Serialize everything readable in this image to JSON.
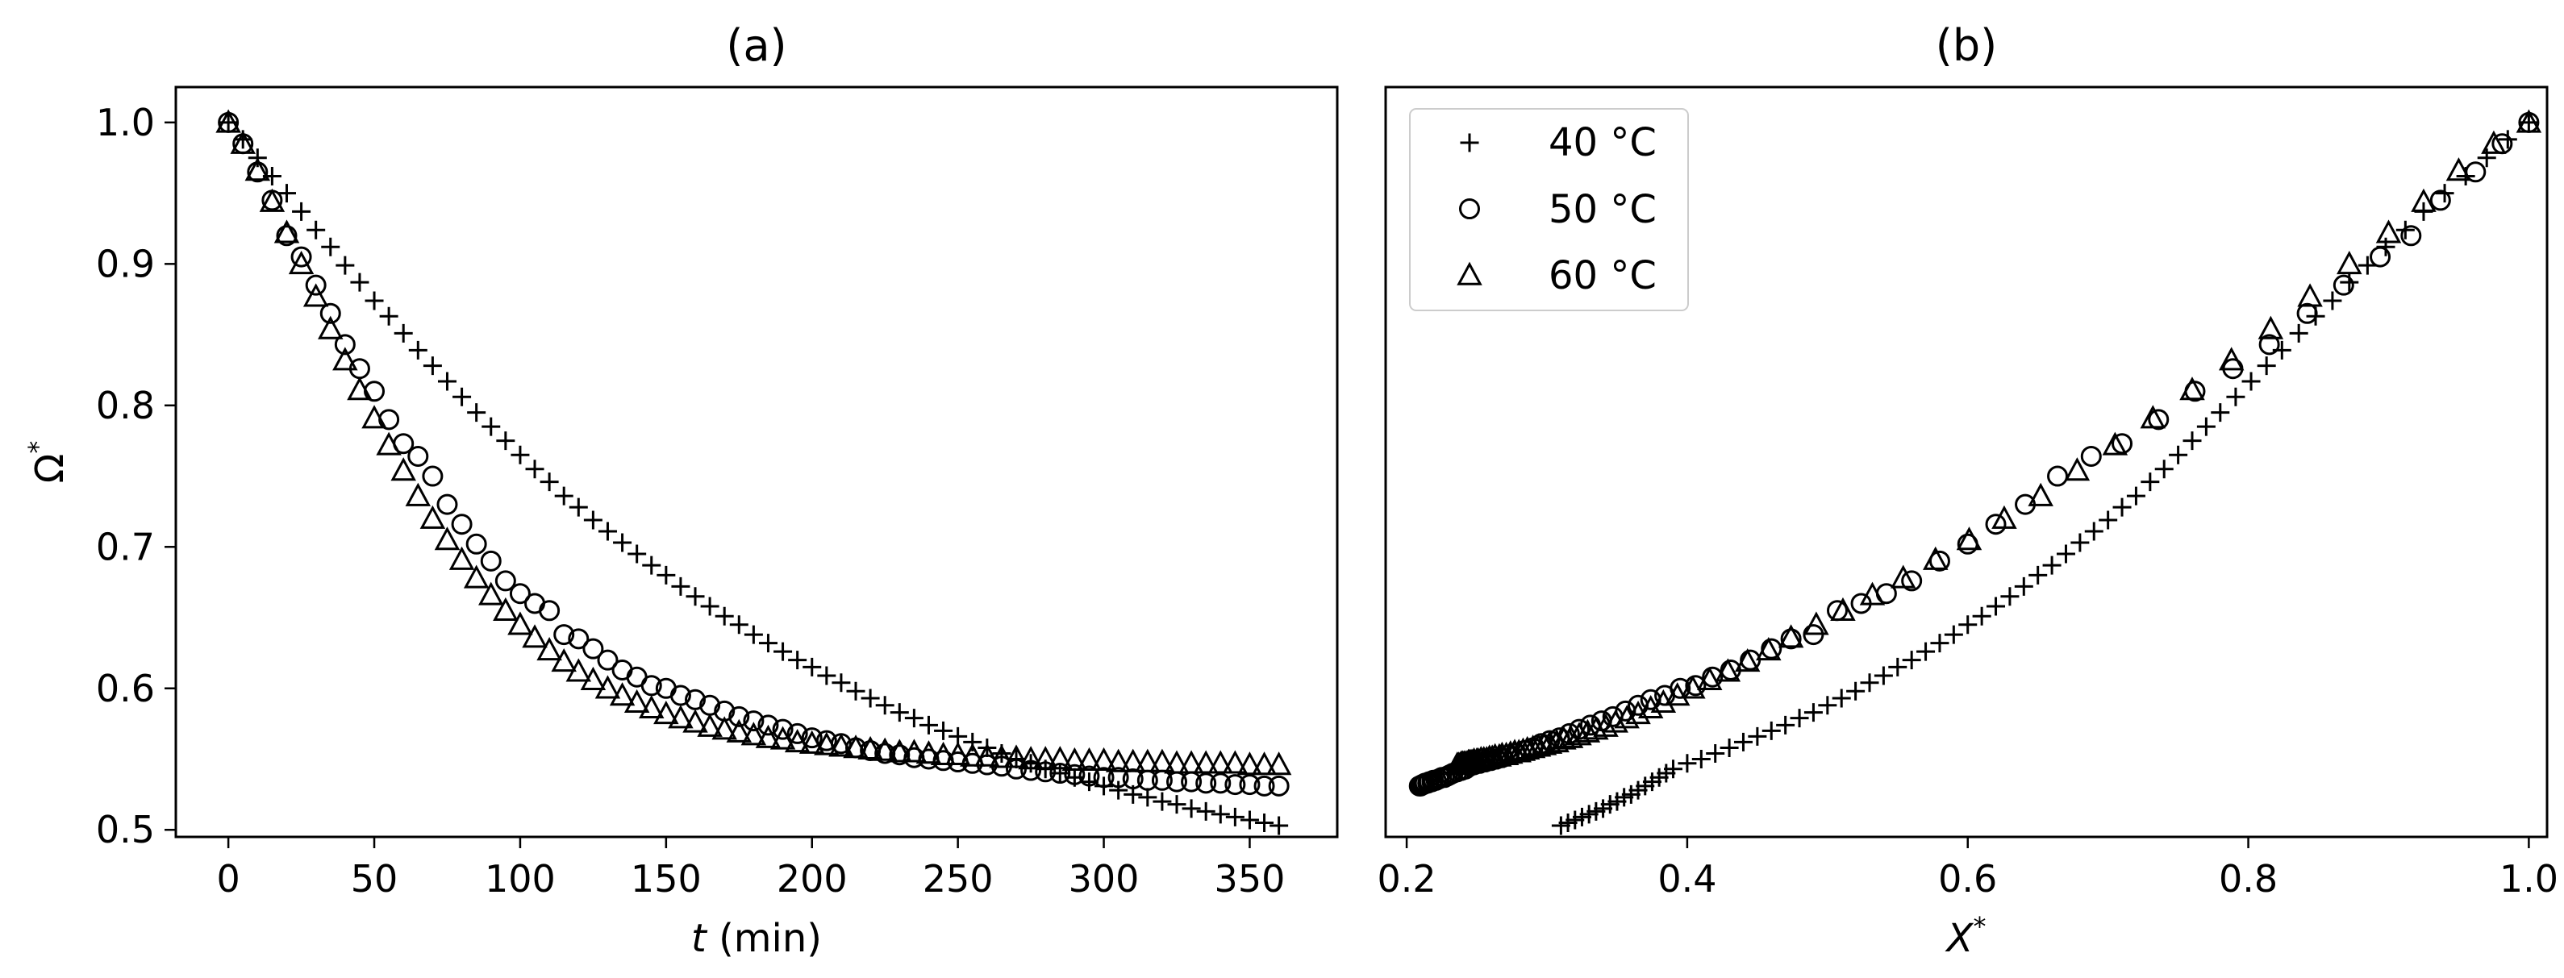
{
  "colors": {
    "marker": "#000000",
    "frame": "#000000",
    "background": "#ffffff"
  },
  "chart_data": [
    {
      "type": "scatter",
      "title": "(a)",
      "xlabel": "t",
      "xlabel_unit": "(min)",
      "ylabel": "Ω",
      "ylabel_sup": "*",
      "xlim": [
        -18,
        380
      ],
      "ylim": [
        0.495,
        1.025
      ],
      "xticks": [
        0,
        50,
        100,
        150,
        200,
        250,
        300,
        350
      ],
      "yticks": [
        0.5,
        0.6,
        0.7,
        0.8,
        0.9,
        1.0
      ],
      "xtick_labels": [
        "0",
        "50",
        "100",
        "150",
        "200",
        "250",
        "300",
        "350"
      ],
      "ytick_labels": [
        "0.5",
        "0.6",
        "0.7",
        "0.8",
        "0.9",
        "1.0"
      ],
      "grid": false,
      "series": [
        {
          "name": "40 °C",
          "marker": "plus",
          "x": [
            0,
            5,
            10,
            15,
            20,
            25,
            30,
            35,
            40,
            45,
            50,
            55,
            60,
            65,
            70,
            75,
            80,
            85,
            90,
            95,
            100,
            105,
            110,
            115,
            120,
            125,
            130,
            135,
            140,
            145,
            150,
            155,
            160,
            165,
            170,
            175,
            180,
            185,
            190,
            195,
            200,
            205,
            210,
            215,
            220,
            225,
            230,
            235,
            240,
            245,
            250,
            255,
            260,
            265,
            270,
            275,
            280,
            285,
            290,
            295,
            300,
            305,
            310,
            315,
            320,
            325,
            330,
            335,
            340,
            345,
            350,
            355,
            360
          ],
          "y": [
            1.0,
            0.988,
            0.975,
            0.962,
            0.95,
            0.937,
            0.924,
            0.912,
            0.899,
            0.887,
            0.874,
            0.863,
            0.851,
            0.839,
            0.828,
            0.817,
            0.806,
            0.795,
            0.785,
            0.775,
            0.765,
            0.755,
            0.746,
            0.736,
            0.728,
            0.719,
            0.711,
            0.703,
            0.695,
            0.687,
            0.68,
            0.672,
            0.665,
            0.658,
            0.651,
            0.645,
            0.638,
            0.632,
            0.626,
            0.62,
            0.615,
            0.609,
            0.604,
            0.598,
            0.593,
            0.588,
            0.583,
            0.579,
            0.574,
            0.57,
            0.566,
            0.562,
            0.558,
            0.554,
            0.55,
            0.547,
            0.543,
            0.54,
            0.537,
            0.534,
            0.531,
            0.528,
            0.525,
            0.523,
            0.52,
            0.518,
            0.515,
            0.513,
            0.511,
            0.509,
            0.507,
            0.505,
            0.503
          ]
        },
        {
          "name": "50 °C",
          "marker": "circle",
          "x": [
            0,
            5,
            10,
            15,
            20,
            25,
            30,
            35,
            40,
            45,
            50,
            55,
            60,
            65,
            70,
            75,
            80,
            85,
            90,
            95,
            100,
            105,
            110,
            115,
            120,
            125,
            130,
            135,
            140,
            145,
            150,
            155,
            160,
            165,
            170,
            175,
            180,
            185,
            190,
            195,
            200,
            205,
            210,
            215,
            220,
            225,
            230,
            235,
            240,
            245,
            250,
            255,
            260,
            265,
            270,
            275,
            280,
            285,
            290,
            295,
            300,
            305,
            310,
            315,
            320,
            325,
            330,
            335,
            340,
            345,
            350,
            355,
            360
          ],
          "y": [
            1.0,
            0.985,
            0.965,
            0.945,
            0.92,
            0.905,
            0.885,
            0.865,
            0.843,
            0.826,
            0.81,
            0.79,
            0.773,
            0.764,
            0.75,
            0.73,
            0.716,
            0.702,
            0.69,
            0.676,
            0.667,
            0.66,
            0.655,
            0.638,
            0.635,
            0.628,
            0.62,
            0.613,
            0.608,
            0.602,
            0.6,
            0.595,
            0.592,
            0.588,
            0.584,
            0.58,
            0.577,
            0.574,
            0.571,
            0.568,
            0.565,
            0.563,
            0.561,
            0.558,
            0.556,
            0.554,
            0.553,
            0.551,
            0.55,
            0.549,
            0.548,
            0.547,
            0.546,
            0.545,
            0.543,
            0.542,
            0.541,
            0.54,
            0.539,
            0.538,
            0.537,
            0.537,
            0.536,
            0.535,
            0.535,
            0.534,
            0.534,
            0.533,
            0.533,
            0.532,
            0.532,
            0.531,
            0.531
          ]
        },
        {
          "name": "60 °C",
          "marker": "triangle",
          "x": [
            0,
            5,
            10,
            15,
            20,
            25,
            30,
            35,
            40,
            45,
            50,
            55,
            60,
            65,
            70,
            75,
            80,
            85,
            90,
            95,
            100,
            105,
            110,
            115,
            120,
            125,
            130,
            135,
            140,
            145,
            150,
            155,
            160,
            165,
            170,
            175,
            180,
            185,
            190,
            195,
            200,
            205,
            210,
            215,
            220,
            225,
            230,
            235,
            240,
            245,
            250,
            255,
            260,
            265,
            270,
            275,
            280,
            285,
            290,
            295,
            300,
            305,
            310,
            315,
            320,
            325,
            330,
            335,
            340,
            345,
            350,
            355,
            360
          ],
          "y": [
            1.0,
            0.985,
            0.966,
            0.944,
            0.922,
            0.9,
            0.877,
            0.854,
            0.832,
            0.811,
            0.791,
            0.772,
            0.754,
            0.736,
            0.72,
            0.705,
            0.691,
            0.678,
            0.666,
            0.655,
            0.645,
            0.636,
            0.627,
            0.619,
            0.612,
            0.606,
            0.6,
            0.595,
            0.59,
            0.586,
            0.582,
            0.579,
            0.576,
            0.573,
            0.571,
            0.569,
            0.567,
            0.565,
            0.564,
            0.562,
            0.561,
            0.56,
            0.559,
            0.558,
            0.557,
            0.556,
            0.555,
            0.555,
            0.554,
            0.553,
            0.553,
            0.552,
            0.552,
            0.551,
            0.551,
            0.55,
            0.55,
            0.55,
            0.549,
            0.549,
            0.549,
            0.548,
            0.548,
            0.548,
            0.548,
            0.547,
            0.547,
            0.547,
            0.547,
            0.547,
            0.546,
            0.546,
            0.546
          ]
        }
      ]
    },
    {
      "type": "scatter",
      "title": "(b)",
      "xlabel": "X",
      "xlabel_sup": "*",
      "ylabel": "",
      "xlim": [
        0.185,
        1.013
      ],
      "ylim": [
        0.495,
        1.025
      ],
      "xticks": [
        0.2,
        0.4,
        0.6,
        0.8,
        1.0
      ],
      "xtick_labels": [
        "0.2",
        "0.4",
        "0.6",
        "0.8",
        "1.0"
      ],
      "grid": false,
      "legend": {
        "position": "top-left",
        "entries": [
          "40 °C",
          "50 °C",
          "60 °C"
        ]
      },
      "series": [
        {
          "name": "40 °C",
          "marker": "plus",
          "x": [
            1.0,
            0.985,
            0.97,
            0.955,
            0.94,
            0.925,
            0.912,
            0.898,
            0.885,
            0.872,
            0.86,
            0.848,
            0.836,
            0.824,
            0.813,
            0.802,
            0.791,
            0.78,
            0.77,
            0.76,
            0.75,
            0.74,
            0.73,
            0.72,
            0.71,
            0.7,
            0.69,
            0.68,
            0.67,
            0.66,
            0.65,
            0.64,
            0.63,
            0.62,
            0.61,
            0.6,
            0.59,
            0.58,
            0.57,
            0.56,
            0.55,
            0.54,
            0.53,
            0.52,
            0.51,
            0.5,
            0.49,
            0.48,
            0.47,
            0.46,
            0.45,
            0.44,
            0.43,
            0.42,
            0.41,
            0.4,
            0.39,
            0.385,
            0.38,
            0.375,
            0.37,
            0.365,
            0.36,
            0.355,
            0.35,
            0.345,
            0.34,
            0.335,
            0.33,
            0.325,
            0.32,
            0.315,
            0.31
          ],
          "y": [
            1.0,
            0.988,
            0.975,
            0.962,
            0.95,
            0.937,
            0.924,
            0.912,
            0.899,
            0.887,
            0.874,
            0.863,
            0.851,
            0.839,
            0.828,
            0.817,
            0.806,
            0.795,
            0.785,
            0.775,
            0.765,
            0.755,
            0.746,
            0.736,
            0.728,
            0.719,
            0.711,
            0.703,
            0.695,
            0.687,
            0.68,
            0.672,
            0.665,
            0.658,
            0.651,
            0.645,
            0.638,
            0.632,
            0.626,
            0.62,
            0.615,
            0.609,
            0.604,
            0.598,
            0.593,
            0.588,
            0.583,
            0.579,
            0.574,
            0.57,
            0.566,
            0.562,
            0.558,
            0.554,
            0.55,
            0.547,
            0.543,
            0.54,
            0.537,
            0.534,
            0.531,
            0.528,
            0.525,
            0.523,
            0.52,
            0.518,
            0.515,
            0.513,
            0.511,
            0.509,
            0.507,
            0.505,
            0.503
          ]
        },
        {
          "name": "50 °C",
          "marker": "circle",
          "x": [
            1.0,
            0.981,
            0.962,
            0.937,
            0.916,
            0.894,
            0.868,
            0.842,
            0.815,
            0.789,
            0.762,
            0.736,
            0.71,
            0.688,
            0.664,
            0.641,
            0.62,
            0.6,
            0.58,
            0.56,
            0.542,
            0.524,
            0.507,
            0.49,
            0.474,
            0.46,
            0.445,
            0.431,
            0.418,
            0.406,
            0.395,
            0.384,
            0.374,
            0.365,
            0.356,
            0.347,
            0.339,
            0.331,
            0.323,
            0.316,
            0.309,
            0.302,
            0.296,
            0.29,
            0.284,
            0.278,
            0.273,
            0.268,
            0.264,
            0.26,
            0.256,
            0.252,
            0.248,
            0.245,
            0.242,
            0.239,
            0.236,
            0.233,
            0.231,
            0.229,
            0.227,
            0.225,
            0.223,
            0.221,
            0.219,
            0.218,
            0.216,
            0.215,
            0.213,
            0.212,
            0.211,
            0.21,
            0.209
          ],
          "y": [
            1.0,
            0.985,
            0.965,
            0.945,
            0.92,
            0.905,
            0.885,
            0.865,
            0.843,
            0.826,
            0.81,
            0.79,
            0.773,
            0.764,
            0.75,
            0.73,
            0.716,
            0.702,
            0.69,
            0.676,
            0.667,
            0.66,
            0.655,
            0.638,
            0.635,
            0.628,
            0.62,
            0.613,
            0.608,
            0.602,
            0.6,
            0.595,
            0.592,
            0.588,
            0.584,
            0.58,
            0.577,
            0.574,
            0.571,
            0.568,
            0.565,
            0.563,
            0.561,
            0.558,
            0.556,
            0.554,
            0.553,
            0.551,
            0.55,
            0.549,
            0.548,
            0.547,
            0.546,
            0.545,
            0.543,
            0.542,
            0.541,
            0.54,
            0.539,
            0.538,
            0.537,
            0.537,
            0.536,
            0.535,
            0.535,
            0.534,
            0.534,
            0.533,
            0.533,
            0.532,
            0.532,
            0.531,
            0.531
          ]
        },
        {
          "name": "60 °C",
          "marker": "triangle",
          "x": [
            1.0,
            0.975,
            0.95,
            0.925,
            0.9,
            0.872,
            0.844,
            0.816,
            0.788,
            0.76,
            0.732,
            0.705,
            0.678,
            0.652,
            0.626,
            0.601,
            0.577,
            0.554,
            0.532,
            0.511,
            0.492,
            0.474,
            0.458,
            0.443,
            0.429,
            0.416,
            0.404,
            0.393,
            0.383,
            0.374,
            0.365,
            0.357,
            0.349,
            0.342,
            0.335,
            0.329,
            0.323,
            0.317,
            0.312,
            0.307,
            0.302,
            0.298,
            0.294,
            0.29,
            0.286,
            0.283,
            0.28,
            0.277,
            0.274,
            0.271,
            0.268,
            0.266,
            0.263,
            0.261,
            0.259,
            0.257,
            0.255,
            0.253,
            0.251,
            0.25,
            0.248,
            0.247,
            0.246,
            0.245,
            0.244,
            0.243,
            0.242,
            0.241,
            0.24,
            0.239,
            0.238,
            0.237,
            0.236
          ],
          "y": [
            1.0,
            0.985,
            0.966,
            0.944,
            0.922,
            0.9,
            0.877,
            0.854,
            0.832,
            0.811,
            0.791,
            0.772,
            0.754,
            0.736,
            0.72,
            0.705,
            0.691,
            0.678,
            0.666,
            0.655,
            0.645,
            0.636,
            0.627,
            0.619,
            0.612,
            0.606,
            0.6,
            0.595,
            0.59,
            0.586,
            0.582,
            0.579,
            0.576,
            0.573,
            0.571,
            0.569,
            0.567,
            0.565,
            0.564,
            0.562,
            0.561,
            0.56,
            0.559,
            0.558,
            0.557,
            0.556,
            0.555,
            0.555,
            0.554,
            0.553,
            0.553,
            0.552,
            0.552,
            0.551,
            0.551,
            0.55,
            0.55,
            0.55,
            0.549,
            0.549,
            0.549,
            0.548,
            0.548,
            0.548,
            0.548,
            0.547,
            0.547,
            0.547,
            0.547,
            0.547,
            0.546,
            0.546,
            0.546
          ]
        }
      ]
    }
  ]
}
